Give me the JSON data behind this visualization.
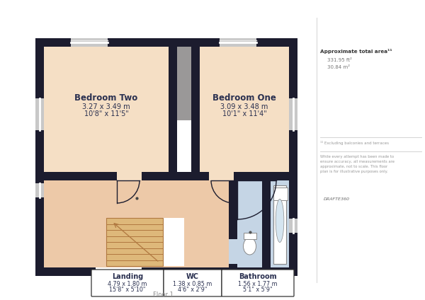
{
  "bg_color": "#ffffff",
  "wall_color": "#1c1c2e",
  "room_color": "#f5dfc5",
  "landing_color": "#edc9a8",
  "bathroom_color": "#c5d5e5",
  "stair_fill": "#deb87a",
  "stair_line": "#b07840",
  "win_color": "#c8c8c8",
  "win_inner": "#e8e8e8",
  "label_color": "#2a3050",
  "approx_title": "Approximate total area¹¹",
  "approx_ft": "331.95 ft²",
  "approx_m": "30.84 m²",
  "footnote1": "¹¹ Excluding balconies and terraces",
  "footnote2": "While every attempt has been made to\nensure accuracy, all measurements are\napproximate, not to scale. This floor\nplan is for illustrative purposes only.",
  "brand": "DRAFTE360",
  "rooms_legend": [
    {
      "name": "Landing",
      "m": "4.79 x 1.80 m",
      "ft": "15'8\" x 5'10\""
    },
    {
      "name": "WC",
      "m": "1.38 x 0.85 m",
      "ft": "4'6\" x 2'9\""
    },
    {
      "name": "Bathroom",
      "m": "1.56 x 1.77 m",
      "ft": "5'1\" x 5'9\""
    }
  ]
}
